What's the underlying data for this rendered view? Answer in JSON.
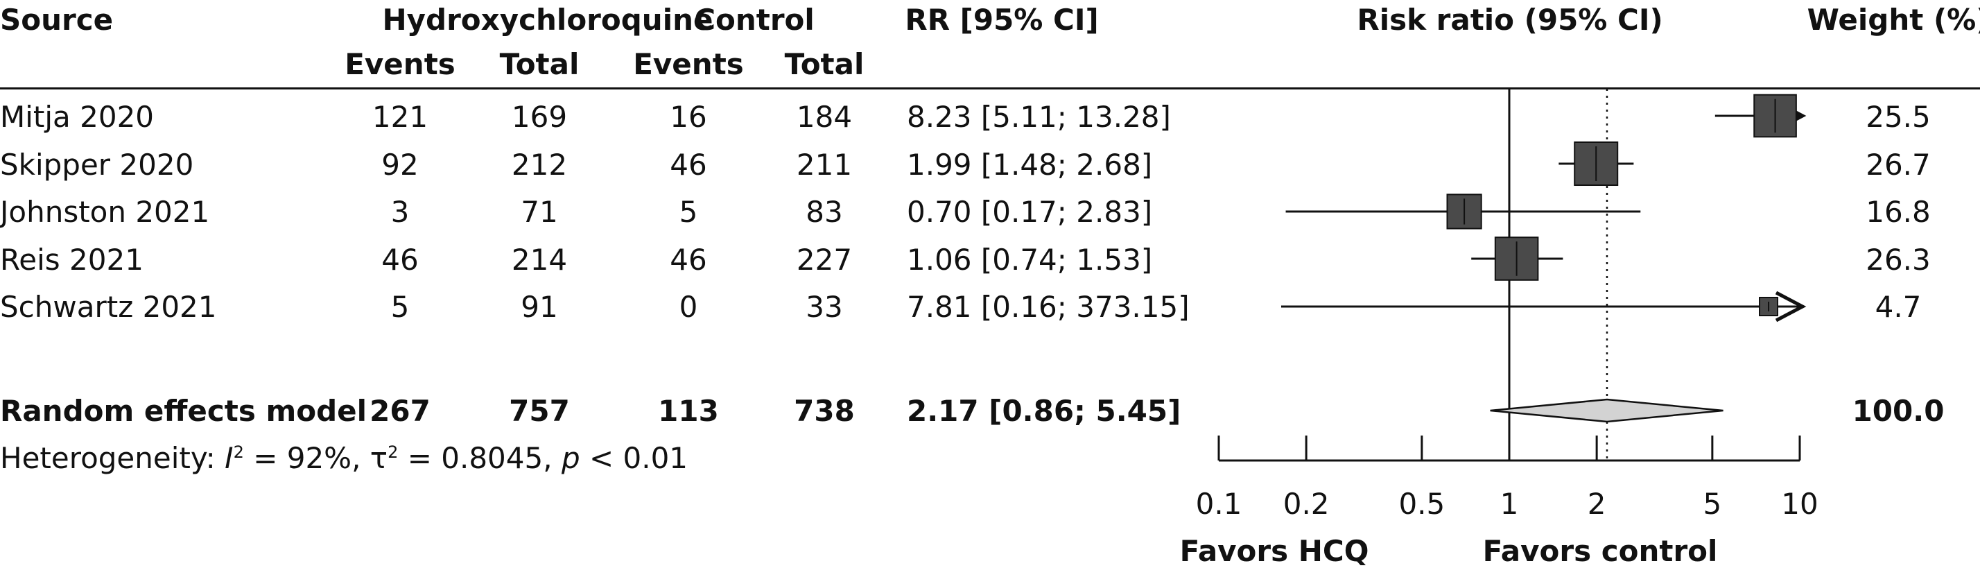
{
  "chart_data": {
    "type": "forest",
    "headers": {
      "source": "Source",
      "group1": "Hydroxychloroquine",
      "group2": "Control",
      "events": "Events",
      "total": "Total",
      "rr": "RR [95% CI]",
      "plot": "Risk ratio (95% CI)",
      "weight": "Weight (%)"
    },
    "studies": [
      {
        "source": "Mitja 2020",
        "e1": "121",
        "n1": "169",
        "e2": "16",
        "n2": "184",
        "rr_text": "8.23 [5.11; 13.28]",
        "rr": 8.23,
        "lo": 5.11,
        "hi": 13.28,
        "weight": 25.5,
        "weight_text": "25.5"
      },
      {
        "source": "Skipper 2020",
        "e1": "92",
        "n1": "212",
        "e2": "46",
        "n2": "211",
        "rr_text": "1.99 [1.48; 2.68]",
        "rr": 1.99,
        "lo": 1.48,
        "hi": 2.68,
        "weight": 26.7,
        "weight_text": "26.7"
      },
      {
        "source": "Johnston 2021",
        "e1": "3",
        "n1": "71",
        "e2": "5",
        "n2": "83",
        "rr_text": "0.70 [0.17; 2.83]",
        "rr": 0.7,
        "lo": 0.17,
        "hi": 2.83,
        "weight": 16.8,
        "weight_text": "16.8"
      },
      {
        "source": "Reis 2021",
        "e1": "46",
        "n1": "214",
        "e2": "46",
        "n2": "227",
        "rr_text": "1.06 [0.74; 1.53]",
        "rr": 1.06,
        "lo": 0.74,
        "hi": 1.53,
        "weight": 26.3,
        "weight_text": "26.3"
      },
      {
        "source": "Schwartz 2021",
        "e1": "5",
        "n1": "91",
        "e2": "0",
        "n2": "33",
        "rr_text": "7.81 [0.16; 373.15]",
        "rr": 7.81,
        "lo": 0.16,
        "hi": 373.15,
        "weight": 4.7,
        "weight_text": "4.7"
      }
    ],
    "pooled": {
      "label": "Random effects model",
      "e1": "267",
      "n1": "757",
      "e2": "113",
      "n2": "738",
      "rr_text": "2.17 [0.86; 5.45]",
      "rr": 2.17,
      "lo": 0.86,
      "hi": 5.45,
      "weight_text": "100.0"
    },
    "heterogeneity": {
      "prefix": "Heterogeneity: ",
      "i_symbol": "I",
      "sup": "2",
      "i2_value": " = 92%, ",
      "tau_symbol": "τ",
      "tau_value": " = 0.8045, ",
      "p_symbol": "p",
      "p_value": " < 0.01"
    },
    "x_scale": "log",
    "xlim": [
      0.1,
      10
    ],
    "x_ticks": [
      0.1,
      0.2,
      0.5,
      1,
      2,
      5,
      10
    ],
    "x_tick_labels": [
      "0.1",
      "0.2",
      "0.5",
      "1",
      "2",
      "5",
      "10"
    ],
    "null_line": 1,
    "pooled_line": 2.17,
    "favors_left": "Favors HCQ",
    "favors_right": "Favors control",
    "colors": {
      "square": "#4a4a4a",
      "diamond": "#d3d3d3",
      "line": "#111111"
    }
  }
}
